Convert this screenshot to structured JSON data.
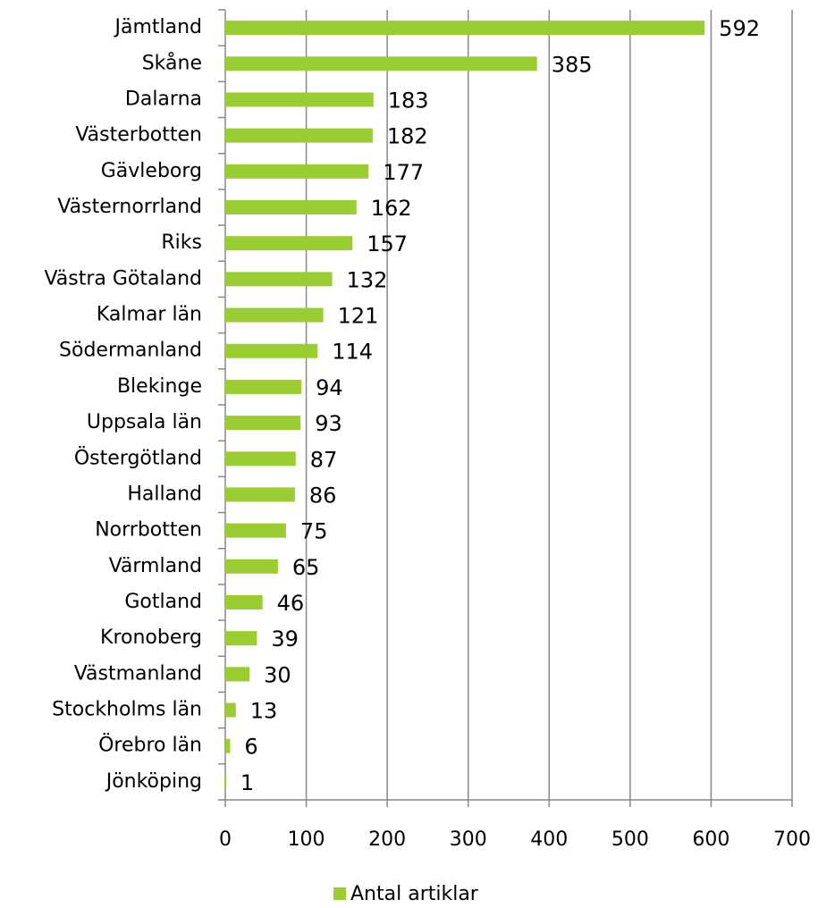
{
  "chart_data": {
    "type": "barh",
    "categories": [
      "Jämtland",
      "Skåne",
      "Dalarna",
      "Västerbotten",
      "Gävleborg",
      "Västernorrland",
      "Riks",
      "Västra Götaland",
      "Kalmar län",
      "Södermanland",
      "Blekinge",
      "Uppsala län",
      "Östergötland",
      "Halland",
      "Norrbotten",
      "Värmland",
      "Gotland",
      "Kronoberg",
      "Västmanland",
      "Stockholms län",
      "Örebro län",
      "Jönköping"
    ],
    "series": [
      {
        "name": "Antal artiklar",
        "color": "#9acd32",
        "values": [
          592,
          385,
          183,
          182,
          177,
          162,
          157,
          132,
          121,
          114,
          94,
          93,
          87,
          86,
          75,
          65,
          46,
          39,
          30,
          13,
          6,
          1
        ]
      }
    ],
    "xlim": [
      0,
      700
    ],
    "xticks": [
      0,
      100,
      200,
      300,
      400,
      500,
      600,
      700
    ],
    "grid": true,
    "legend": "bottom"
  }
}
